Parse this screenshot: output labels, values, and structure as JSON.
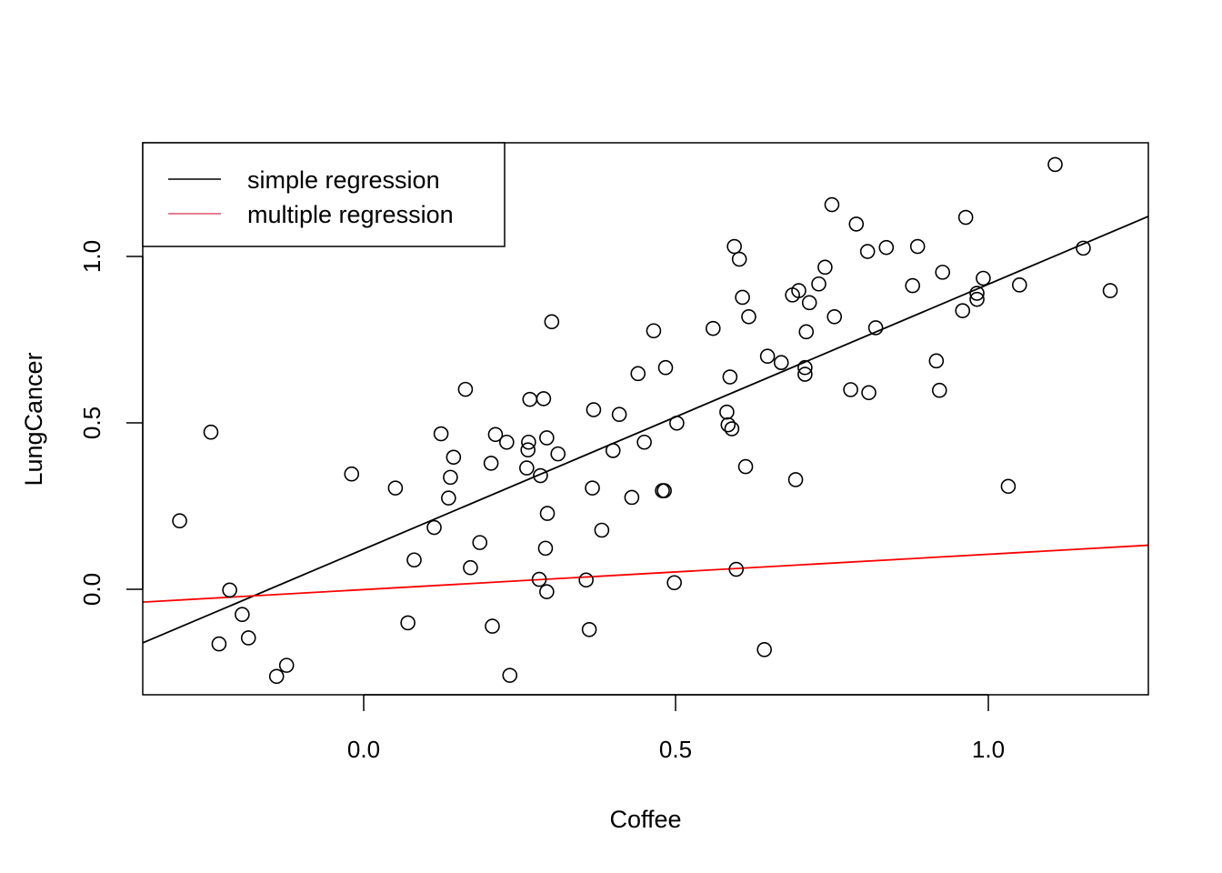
{
  "chart_data": {
    "type": "scatter",
    "title": "",
    "xlabel": "Coffee",
    "ylabel": "LungCancer",
    "xlim": [
      -0.354,
      1.254
    ],
    "ylim": [
      -0.31,
      1.34
    ],
    "x_ticks": [
      {
        "value": 0.0,
        "label": "0.0"
      },
      {
        "value": 0.5,
        "label": "0.5"
      },
      {
        "value": 1.0,
        "label": "1.0"
      }
    ],
    "y_ticks": [
      {
        "value": 0.0,
        "label": "0.0"
      },
      {
        "value": 0.5,
        "label": "0.5"
      },
      {
        "value": 1.0,
        "label": "1.0"
      }
    ],
    "points": [
      [
        -0.295,
        0.21
      ],
      [
        -0.245,
        0.475
      ],
      [
        -0.232,
        -0.158
      ],
      [
        -0.215,
        0.003
      ],
      [
        -0.195,
        -0.07
      ],
      [
        -0.185,
        -0.14
      ],
      [
        -0.14,
        -0.255
      ],
      [
        -0.124,
        -0.222
      ],
      [
        -0.02,
        0.35
      ],
      [
        0.05,
        0.308
      ],
      [
        0.07,
        -0.095
      ],
      [
        0.08,
        0.093
      ],
      [
        0.112,
        0.19
      ],
      [
        0.123,
        0.47
      ],
      [
        0.135,
        0.278
      ],
      [
        0.138,
        0.34
      ],
      [
        0.143,
        0.4
      ],
      [
        0.162,
        0.603
      ],
      [
        0.17,
        0.07
      ],
      [
        0.185,
        0.145
      ],
      [
        0.203,
        0.382
      ],
      [
        0.205,
        -0.105
      ],
      [
        0.21,
        0.468
      ],
      [
        0.228,
        0.445
      ],
      [
        0.233,
        -0.252
      ],
      [
        0.26,
        0.368
      ],
      [
        0.262,
        0.422
      ],
      [
        0.263,
        0.445
      ],
      [
        0.265,
        0.573
      ],
      [
        0.28,
        0.035
      ],
      [
        0.282,
        0.345
      ],
      [
        0.287,
        0.575
      ],
      [
        0.29,
        0.128
      ],
      [
        0.292,
        0.458
      ],
      [
        0.293,
        0.232
      ],
      [
        0.292,
        -0.002
      ],
      [
        0.3,
        0.805
      ],
      [
        0.31,
        0.41
      ],
      [
        0.355,
        0.033
      ],
      [
        0.36,
        -0.115
      ],
      [
        0.365,
        0.308
      ],
      [
        0.367,
        0.542
      ],
      [
        0.38,
        0.182
      ],
      [
        0.398,
        0.42
      ],
      [
        0.408,
        0.528
      ],
      [
        0.428,
        0.28
      ],
      [
        0.438,
        0.65
      ],
      [
        0.448,
        0.445
      ],
      [
        0.463,
        0.778
      ],
      [
        0.477,
        0.3
      ],
      [
        0.48,
        0.3
      ],
      [
        0.482,
        0.668
      ],
      [
        0.496,
        0.025
      ],
      [
        0.5,
        0.502
      ],
      [
        0.558,
        0.785
      ],
      [
        0.58,
        0.535
      ],
      [
        0.582,
        0.497
      ],
      [
        0.585,
        0.64
      ],
      [
        0.588,
        0.485
      ],
      [
        0.592,
        1.03
      ],
      [
        0.595,
        0.065
      ],
      [
        0.6,
        0.992
      ],
      [
        0.605,
        0.878
      ],
      [
        0.61,
        0.372
      ],
      [
        0.615,
        0.82
      ],
      [
        0.64,
        -0.175
      ],
      [
        0.645,
        0.702
      ],
      [
        0.667,
        0.683
      ],
      [
        0.685,
        0.885
      ],
      [
        0.69,
        0.333
      ],
      [
        0.695,
        0.898
      ],
      [
        0.705,
        0.648
      ],
      [
        0.705,
        0.668
      ],
      [
        0.707,
        0.775
      ],
      [
        0.712,
        0.862
      ],
      [
        0.727,
        0.918
      ],
      [
        0.737,
        0.968
      ],
      [
        0.748,
        1.155
      ],
      [
        0.752,
        0.82
      ],
      [
        0.778,
        0.602
      ],
      [
        0.787,
        1.097
      ],
      [
        0.805,
        1.015
      ],
      [
        0.807,
        0.593
      ],
      [
        0.818,
        0.787
      ],
      [
        0.835,
        1.027
      ],
      [
        0.877,
        0.913
      ],
      [
        0.885,
        1.03
      ],
      [
        0.915,
        0.688
      ],
      [
        0.92,
        0.6
      ],
      [
        0.925,
        0.953
      ],
      [
        0.957,
        0.838
      ],
      [
        0.962,
        1.117
      ],
      [
        0.98,
        0.872
      ],
      [
        0.98,
        0.89
      ],
      [
        0.99,
        0.935
      ],
      [
        1.03,
        0.313
      ],
      [
        1.048,
        0.915
      ],
      [
        1.105,
        1.275
      ],
      [
        1.15,
        1.025
      ],
      [
        1.193,
        0.898
      ]
    ],
    "series": [
      {
        "name": "simple regression",
        "type": "line",
        "color": "#000000",
        "x": [
          -0.354,
          1.254
        ],
        "y": [
          -0.155,
          1.12
        ]
      },
      {
        "name": "multiple regression",
        "type": "line",
        "color": "#ff0000",
        "x": [
          -0.354,
          1.254
        ],
        "y": [
          -0.033,
          0.137
        ]
      }
    ],
    "legend": {
      "position": "top-left",
      "entries": [
        {
          "label": "simple regression",
          "color": "#000000"
        },
        {
          "label": "multiple regression",
          "color": "#df536b"
        }
      ]
    },
    "grid": false
  }
}
